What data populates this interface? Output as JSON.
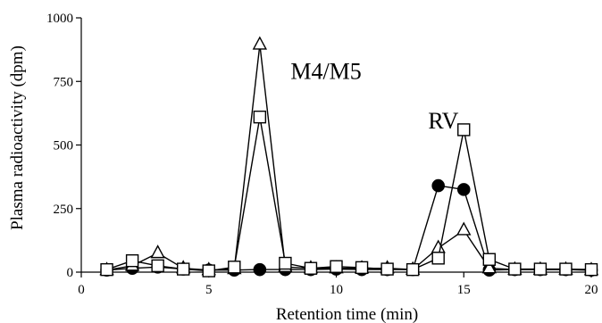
{
  "chart_data": {
    "type": "line",
    "xlabel": "Retention time (min)",
    "ylabel": "Plasma radioactivity (dpm)",
    "xlim": [
      0,
      20
    ],
    "ylim": [
      0,
      1000
    ],
    "xticks": [
      0,
      5,
      10,
      15,
      20
    ],
    "yticks": [
      0,
      250,
      500,
      750,
      1000
    ],
    "grid": false,
    "annotations": [
      {
        "text": "M4/M5",
        "x": 9.6,
        "y": 760
      },
      {
        "text": "RV",
        "x": 14.2,
        "y": 565
      }
    ],
    "series": [
      {
        "marker": "circle-filled",
        "x": [
          1,
          2,
          3,
          4,
          5,
          6,
          7,
          8,
          9,
          10,
          11,
          12,
          13,
          14,
          15,
          16,
          17,
          18,
          19,
          20
        ],
        "y": [
          8,
          15,
          20,
          12,
          8,
          8,
          10,
          10,
          10,
          12,
          10,
          10,
          10,
          340,
          325,
          8,
          10,
          10,
          10,
          8
        ]
      },
      {
        "marker": "triangle-open",
        "x": [
          1,
          2,
          3,
          4,
          5,
          6,
          7,
          8,
          9,
          10,
          11,
          12,
          13,
          14,
          15,
          16,
          17,
          18,
          19,
          20
        ],
        "y": [
          8,
          25,
          75,
          15,
          8,
          12,
          895,
          20,
          15,
          15,
          15,
          15,
          10,
          95,
          165,
          15,
          10,
          10,
          10,
          8
        ]
      },
      {
        "marker": "square-open",
        "x": [
          1,
          2,
          3,
          4,
          5,
          6,
          7,
          8,
          9,
          10,
          11,
          12,
          13,
          14,
          15,
          16,
          17,
          18,
          19,
          20
        ],
        "y": [
          10,
          45,
          25,
          12,
          5,
          20,
          610,
          35,
          15,
          22,
          18,
          12,
          10,
          55,
          560,
          50,
          12,
          12,
          12,
          10
        ]
      }
    ]
  }
}
